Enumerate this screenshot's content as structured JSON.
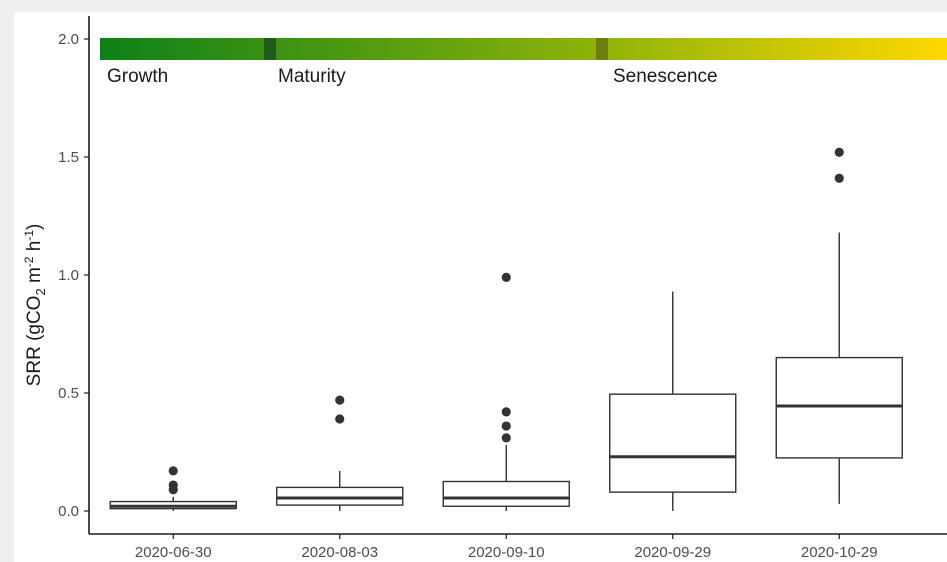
{
  "colors": {
    "panel_background": "#ffffff",
    "outer_background": "#eeeff1",
    "axis": "#1a1a1a",
    "box_stroke": "#333333",
    "outlier": "#333333",
    "gradient_start": "#0e8019",
    "gradient_mid": "#8cb20a",
    "gradient_end": "#ffd800",
    "marker_1": "#1f5c1c",
    "marker_2": "#6d7e12"
  },
  "stages": [
    {
      "label": "Growth"
    },
    {
      "label": "Maturity"
    },
    {
      "label": "Senescence"
    }
  ],
  "chart_data": {
    "type": "box",
    "title": "",
    "xlabel": "",
    "ylabel": {
      "main": "SRR (gCO",
      "sub": "2",
      "mid": " m",
      "sup1": "-2",
      "mid2": " h",
      "sup2": "-1",
      "end": ")"
    },
    "ylim": [
      -0.05,
      2.1
    ],
    "yticks": [
      0.0,
      0.5,
      1.0,
      1.5,
      2.0
    ],
    "ytick_labels": [
      "0.0",
      "0.5",
      "1.0",
      "1.5",
      "2.0"
    ],
    "grid": false,
    "categories": [
      "2020-06-30",
      "2020-08-03",
      "2020-09-10",
      "2020-09-29",
      "2020-10-29"
    ],
    "boxes": [
      {
        "category": "2020-06-30",
        "whisker_low": 0.0,
        "q1": 0.01,
        "median": 0.02,
        "q3": 0.04,
        "whisker_high": 0.06,
        "outliers": [
          0.09,
          0.11,
          0.17
        ]
      },
      {
        "category": "2020-08-03",
        "whisker_low": 0.0,
        "q1": 0.025,
        "median": 0.055,
        "q3": 0.1,
        "whisker_high": 0.17,
        "outliers": [
          0.39,
          0.47
        ]
      },
      {
        "category": "2020-09-10",
        "whisker_low": 0.0,
        "q1": 0.02,
        "median": 0.055,
        "q3": 0.125,
        "whisker_high": 0.28,
        "outliers": [
          0.31,
          0.36,
          0.42,
          0.99
        ]
      },
      {
        "category": "2020-09-29",
        "whisker_low": 0.0,
        "q1": 0.08,
        "median": 0.23,
        "q3": 0.495,
        "whisker_high": 0.93,
        "outliers": []
      },
      {
        "category": "2020-10-29",
        "whisker_low": 0.03,
        "q1": 0.225,
        "median": 0.445,
        "q3": 0.65,
        "whisker_high": 1.18,
        "outliers": [
          1.41,
          1.52
        ]
      }
    ]
  }
}
